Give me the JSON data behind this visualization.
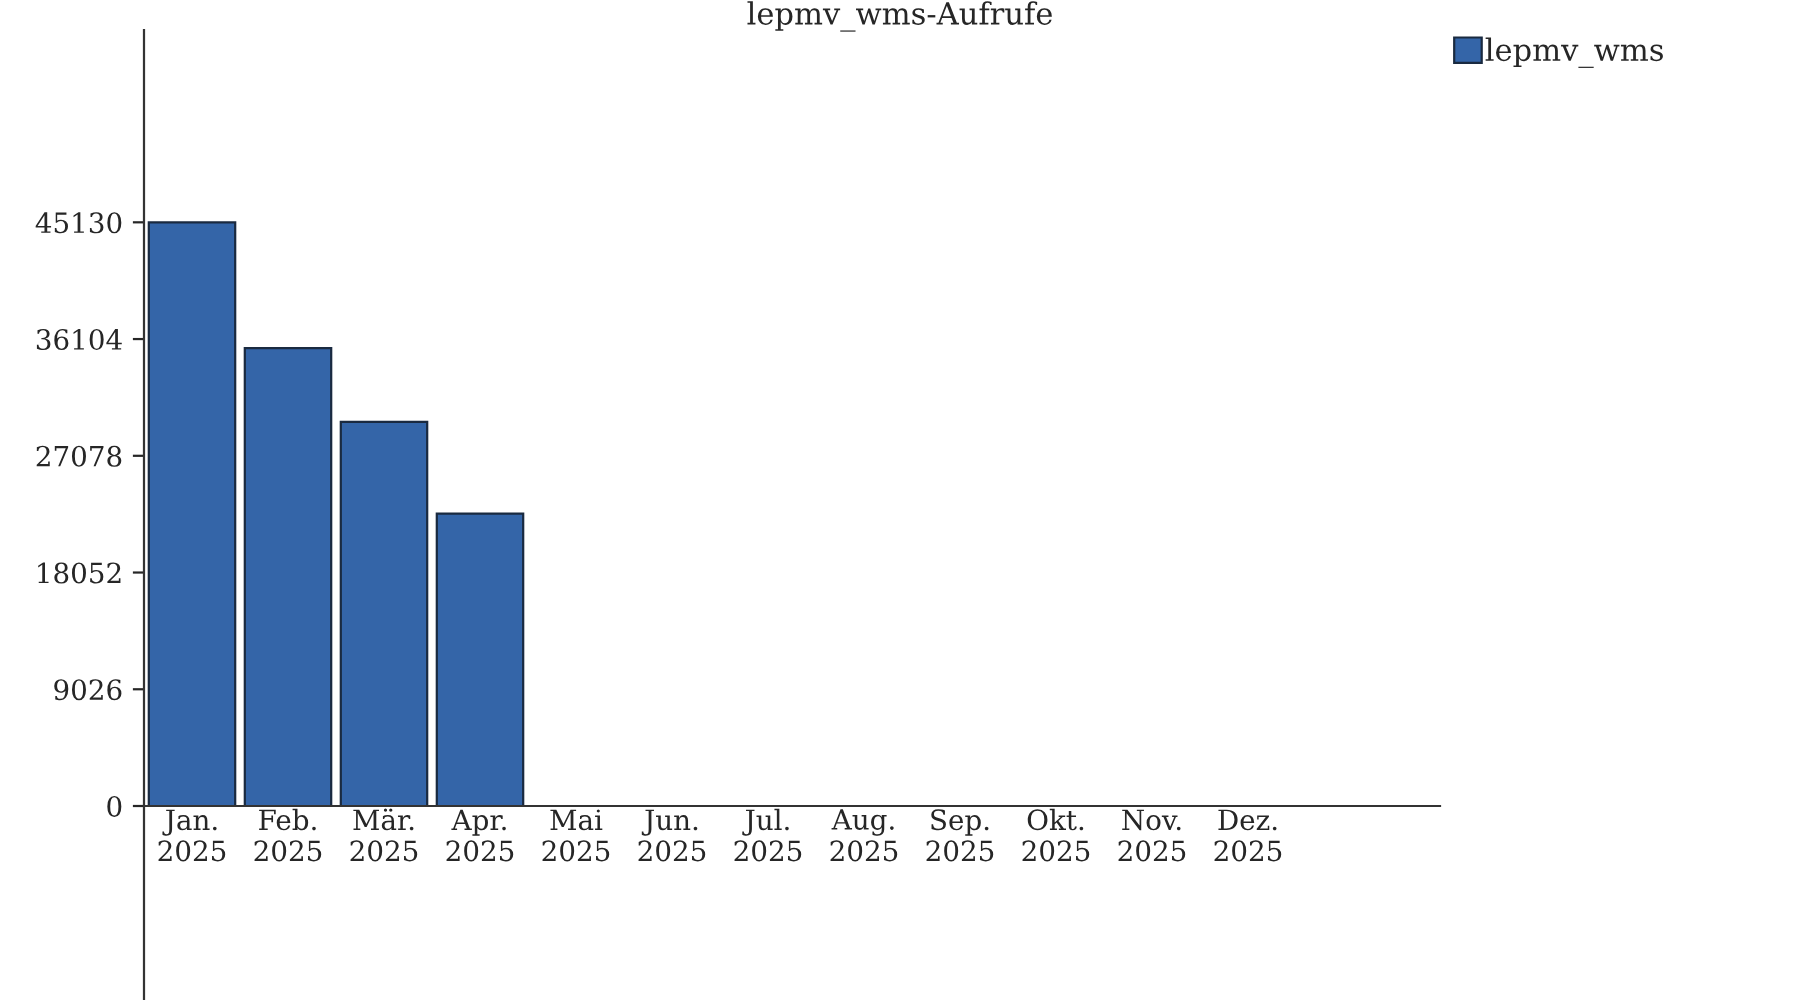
{
  "chart_data": {
    "type": "bar",
    "title": "lepmv_wms-Aufrufe",
    "categories": [
      "Jan.\n2025",
      "Feb.\n2025",
      "Mär.\n2025",
      "Apr.\n2025",
      "Mai\n2025",
      "Jun.\n2025",
      "Jul.\n2025",
      "Aug.\n2025",
      "Sep.\n2025",
      "Okt.\n2025",
      "Nov.\n2025",
      "Dez.\n2025"
    ],
    "series": [
      {
        "name": "lepmv_wms",
        "color": "#3465a8",
        "values": [
          45130,
          35400,
          29700,
          22600,
          0,
          0,
          0,
          0,
          0,
          0,
          0,
          0
        ]
      }
    ],
    "ylim": [
      -15000,
      60000
    ],
    "yticks": [
      0,
      9026,
      18052,
      27078,
      36104,
      45130
    ],
    "grid": false,
    "legend": "top right"
  }
}
